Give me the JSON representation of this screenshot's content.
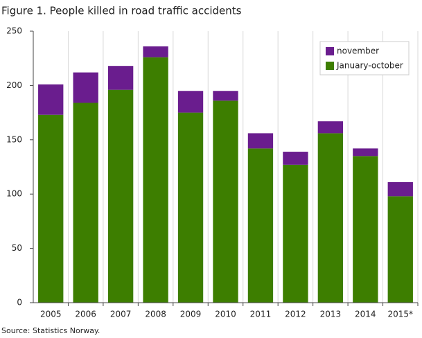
{
  "chart_data": {
    "type": "stacked-bar",
    "title": "Figure 1. People killed in road traffic accidents",
    "source": "Source: Statistics Norway.",
    "categories": [
      "2005",
      "2006",
      "2007",
      "2008",
      "2009",
      "2010",
      "2011",
      "2012",
      "2013",
      "2014",
      "2015*"
    ],
    "series": [
      {
        "name": "January-october",
        "color": "#3d7e00",
        "values": [
          173,
          184,
          196,
          226,
          175,
          186,
          142,
          127,
          156,
          135,
          98
        ]
      },
      {
        "name": "november",
        "color": "#6a1d8e",
        "values": [
          28,
          28,
          22,
          10,
          20,
          9,
          14,
          12,
          11,
          7,
          13
        ]
      }
    ],
    "ylim": [
      0,
      250
    ],
    "yticks": [
      0,
      50,
      100,
      150,
      200,
      250
    ],
    "grid": "vertical",
    "legend": "top-right"
  }
}
